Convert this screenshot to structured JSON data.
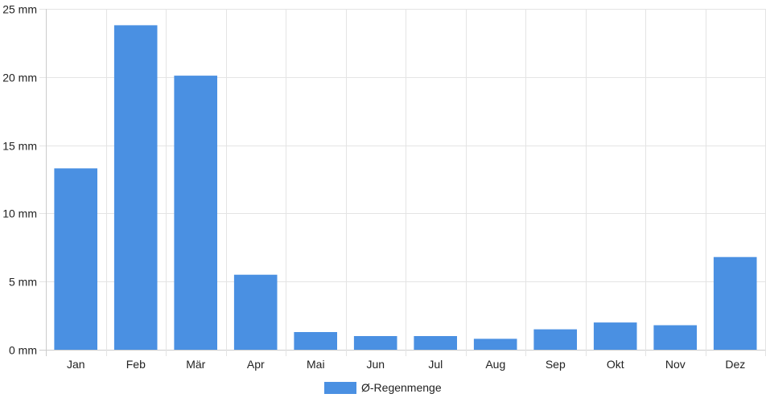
{
  "colors": {
    "bar": "#4a90e2",
    "grid": "#e4e4e4",
    "axis": "#cccccc",
    "text": "#222222"
  },
  "chart_data": {
    "type": "bar",
    "categories": [
      "Jan",
      "Feb",
      "Mär",
      "Apr",
      "Mai",
      "Jun",
      "Jul",
      "Aug",
      "Sep",
      "Okt",
      "Nov",
      "Dez"
    ],
    "series": [
      {
        "name": "Ø-Regenmenge",
        "values": [
          13.3,
          23.8,
          20.1,
          5.5,
          1.3,
          1.0,
          1.0,
          0.8,
          1.5,
          2.0,
          1.8,
          6.8
        ]
      }
    ],
    "y_ticks": [
      "0 mm",
      "5 mm",
      "10 mm",
      "15 mm",
      "20 mm",
      "25 mm"
    ],
    "ylim": [
      0,
      25
    ],
    "y_tick_step": 5,
    "grid": true,
    "legend_position": "bottom-center"
  }
}
